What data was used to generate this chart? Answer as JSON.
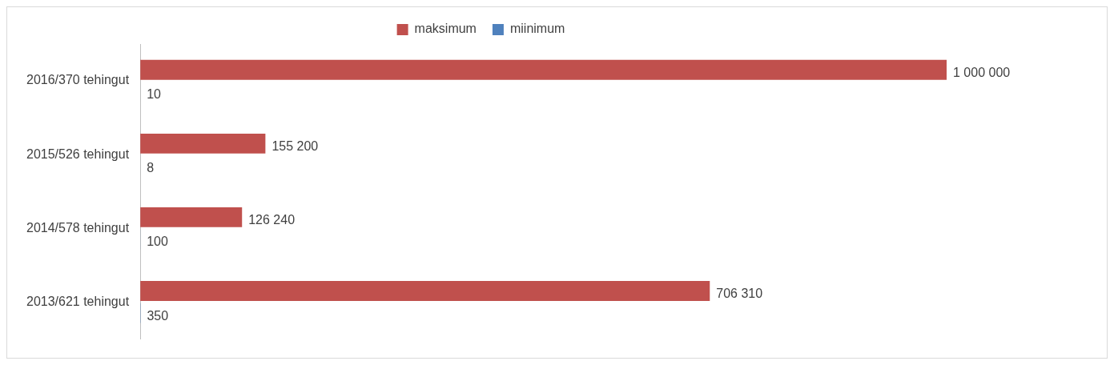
{
  "chart_data": {
    "type": "bar",
    "orientation": "horizontal",
    "categories": [
      "2016/370 tehingut",
      "2015/526 tehingut",
      "2014/578 tehingut",
      "2013/621 tehingut"
    ],
    "series": [
      {
        "name": "maksimum",
        "color": "#c0504d",
        "values": [
          1000000,
          155200,
          126240,
          706310
        ],
        "value_labels": [
          "1 000 000",
          "155 200",
          "126 240",
          "706 310"
        ]
      },
      {
        "name": "miinimum",
        "color": "#4f81bd",
        "values": [
          10,
          8,
          100,
          350
        ],
        "value_labels": [
          "10",
          "8",
          "100",
          "350"
        ]
      }
    ],
    "tick_labels": "y",
    "grid": false,
    "legend": "top"
  }
}
